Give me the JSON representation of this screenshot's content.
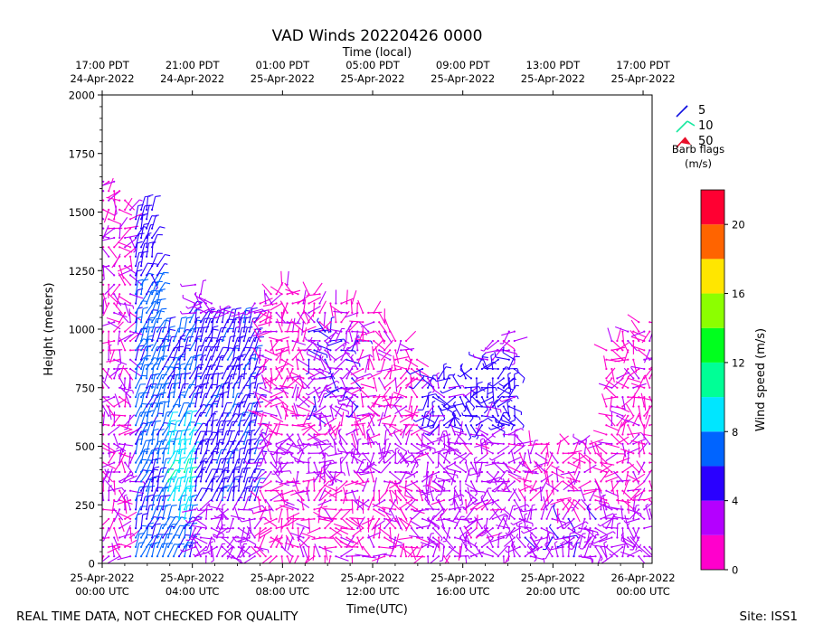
{
  "chart_data": {
    "type": "wind-barb",
    "title": "VAD Winds 20220426 0000",
    "top_axis_label": "Time (local)",
    "xlabel": "Time(UTC)",
    "ylabel": "Height (meters)",
    "ylim": [
      0,
      2000
    ],
    "yticks": [
      0,
      250,
      500,
      750,
      1000,
      1250,
      1500,
      1750,
      2000
    ],
    "xlim_hours": [
      0,
      24.4
    ],
    "x_ticks_utc": [
      {
        "hour": 0,
        "line1": "25-Apr-2022",
        "line2": "00:00 UTC"
      },
      {
        "hour": 4,
        "line1": "25-Apr-2022",
        "line2": "04:00 UTC"
      },
      {
        "hour": 8,
        "line1": "25-Apr-2022",
        "line2": "08:00 UTC"
      },
      {
        "hour": 12,
        "line1": "25-Apr-2022",
        "line2": "12:00 UTC"
      },
      {
        "hour": 16,
        "line1": "25-Apr-2022",
        "line2": "16:00 UTC"
      },
      {
        "hour": 20,
        "line1": "25-Apr-2022",
        "line2": "20:00 UTC"
      },
      {
        "hour": 24,
        "line1": "26-Apr-2022",
        "line2": "00:00 UTC"
      }
    ],
    "x_ticks_local": [
      {
        "hour": 0,
        "line1": "17:00 PDT",
        "line2": "24-Apr-2022"
      },
      {
        "hour": 4,
        "line1": "21:00 PDT",
        "line2": "24-Apr-2022"
      },
      {
        "hour": 8,
        "line1": "01:00 PDT",
        "line2": "25-Apr-2022"
      },
      {
        "hour": 12,
        "line1": "05:00 PDT",
        "line2": "25-Apr-2022"
      },
      {
        "hour": 16,
        "line1": "09:00 PDT",
        "line2": "25-Apr-2022"
      },
      {
        "hour": 20,
        "line1": "13:00 PDT",
        "line2": "25-Apr-2022"
      },
      {
        "hour": 24,
        "line1": "17:00 PDT",
        "line2": "25-Apr-2022"
      }
    ],
    "barb_legend": {
      "items": [
        {
          "label": "5",
          "color": "#1010e0"
        },
        {
          "label": "10",
          "color": "#18e8a0"
        },
        {
          "label": "50",
          "color": "#e8102a"
        }
      ],
      "title_line1": "Barb flags",
      "title_line2": "(m/s)"
    },
    "colorbar": {
      "label": "Wind speed (m/s)",
      "range": [
        0,
        22
      ],
      "ticks": [
        0,
        4,
        8,
        12,
        16,
        20
      ],
      "bins": [
        {
          "from": 0,
          "to": 2,
          "color": "#ff00cc"
        },
        {
          "from": 2,
          "to": 4,
          "color": "#b400ff"
        },
        {
          "from": 4,
          "to": 6,
          "color": "#2a00ff"
        },
        {
          "from": 6,
          "to": 8,
          "color": "#0064ff"
        },
        {
          "from": 8,
          "to": 10,
          "color": "#00e6ff"
        },
        {
          "from": 10,
          "to": 12,
          "color": "#00ff96"
        },
        {
          "from": 12,
          "to": 14,
          "color": "#00ff1e"
        },
        {
          "from": 14,
          "to": 16,
          "color": "#8cff00"
        },
        {
          "from": 16,
          "to": 18,
          "color": "#ffe600"
        },
        {
          "from": 18,
          "to": 20,
          "color": "#ff6400"
        },
        {
          "from": 20,
          "to": 22,
          "color": "#ff0032"
        }
      ]
    },
    "wind_field": {
      "grid": "approx 10-minute x 20 m VAD profiles, density reduced in this recreation",
      "regions": [
        {
          "hours": [
            0.0,
            1.3
          ],
          "height_max": 1650,
          "speed_ms": [
            0,
            4
          ],
          "dominant": "pink/purple"
        },
        {
          "hours": [
            1.3,
            2.7
          ],
          "height_max": 1550,
          "speed_ms": [
            4,
            8
          ],
          "dominant": "blue"
        },
        {
          "hours": [
            2.7,
            4.1
          ],
          "height_max": 1000,
          "speed_ms": [
            6,
            11
          ],
          "dominant": "cyan/green core near 300-500 m"
        },
        {
          "hours": [
            4.1,
            6.8
          ],
          "height_max": 1100,
          "speed_ms": [
            4,
            8
          ],
          "dominant": "blue"
        },
        {
          "hours": [
            6.8,
            14.0
          ],
          "height_max": 1150,
          "speed_ms": [
            1,
            5
          ],
          "dominant": "pink/purple"
        },
        {
          "hours": [
            14.0,
            18.5
          ],
          "height_max": 1000,
          "speed_ms": [
            2,
            6
          ],
          "dominant": "purple/blue"
        },
        {
          "hours": [
            18.5,
            22.0
          ],
          "height_max": 500,
          "speed_ms": [
            1,
            5
          ],
          "dominant": "purple/pink"
        },
        {
          "hours": [
            22.0,
            24.0
          ],
          "height_max": 1050,
          "speed_ms": [
            1,
            5
          ],
          "dominant": "pink/purple"
        }
      ]
    }
  },
  "footer": {
    "left_note": "REAL TIME DATA, NOT CHECKED FOR QUALITY",
    "site": "Site: ISS1"
  }
}
